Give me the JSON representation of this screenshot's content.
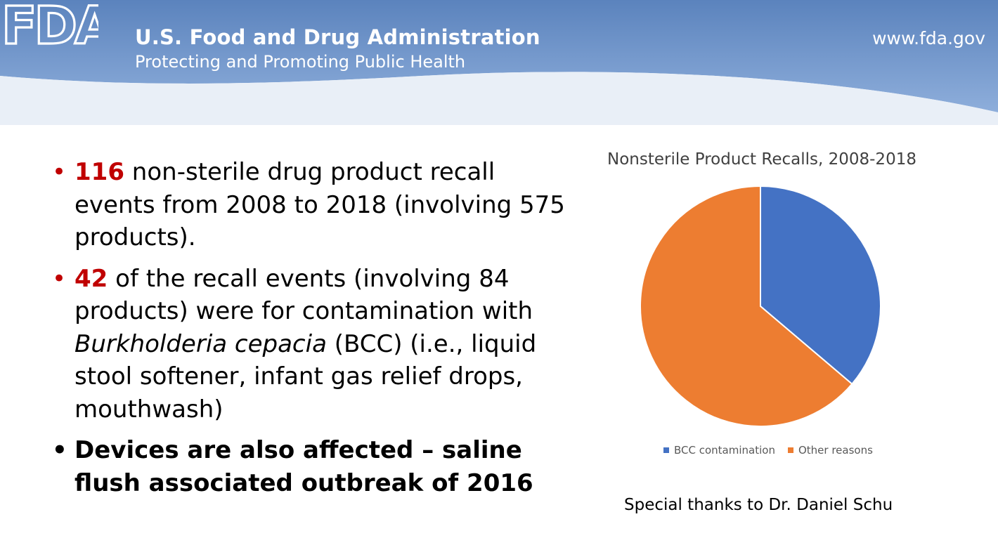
{
  "header": {
    "logo_text": "FDA",
    "agency_name": "U.S. Food and Drug Administration",
    "tagline": "Protecting and Promoting Public Health",
    "website": "www.fda.gov",
    "colors": {
      "banner_top": "#5b83bd",
      "banner_bottom": "#8eaedb"
    }
  },
  "bullets": {
    "b1": {
      "marker": "•",
      "highlight": "116",
      "text": " non-sterile drug product recall events from 2008 to 2018 (involving 575 products)."
    },
    "b2": {
      "marker": "•",
      "highlight": "42",
      "text_before": " of the recall events (involving 84 products) were for contamination with ",
      "italic": "Burkholderia cepacia",
      "text_after": " (BCC) (i.e., liquid stool softener, infant gas relief drops, mouthwash)"
    },
    "b3": {
      "marker": "•",
      "text": "Devices are also affected – saline flush associated outbreak of 2016"
    }
  },
  "chart_data": {
    "type": "pie",
    "title": "Nonsterile Product Recalls, 2008-2018",
    "categories": [
      "BCC contamination",
      "Other reasons"
    ],
    "values": [
      42,
      74
    ],
    "colors": [
      "#4472c4",
      "#ed7d31"
    ],
    "legend_position": "bottom",
    "start_angle_deg": 0,
    "direction": "clockwise"
  },
  "credit": "Special thanks to Dr. Daniel Schu"
}
